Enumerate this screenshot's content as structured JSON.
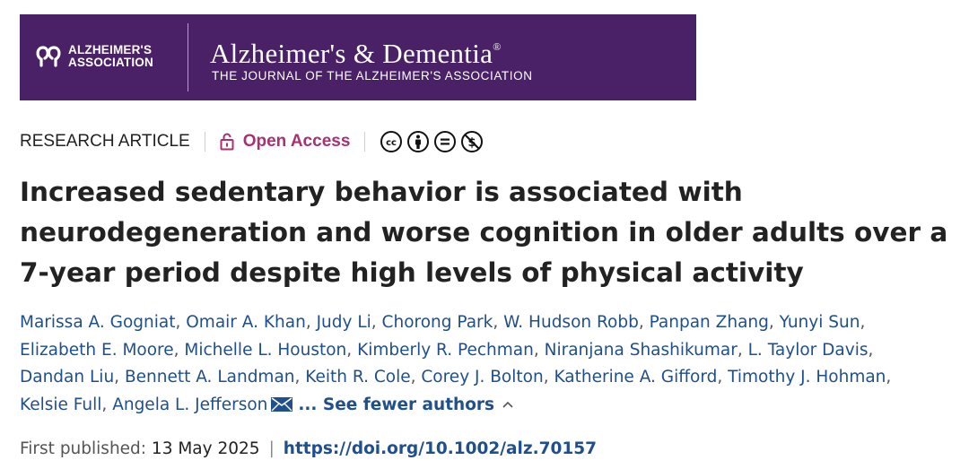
{
  "banner": {
    "association_line1": "ALZHEIMER'S",
    "association_line2": "ASSOCIATION",
    "journal_title": "Alzheimer's & Dementia",
    "trademark": "®",
    "journal_subtitle": "THE JOURNAL OF THE ALZHEIMER'S ASSOCIATION",
    "background_color": "#4a2066"
  },
  "meta": {
    "article_type": "RESEARCH ARTICLE",
    "open_access_label": "Open Access",
    "open_access_color": "#a83171",
    "license_icons": [
      "cc-icon",
      "attribution-icon",
      "no-derivatives-icon",
      "non-commercial-icon"
    ]
  },
  "article": {
    "title_lines": [
      "Increased sedentary behavior is associated with",
      "neurodegeneration and worse cognition in older adults over a",
      "7-year period despite high levels of physical activity"
    ]
  },
  "authors": {
    "list": [
      "Marissa A. Gogniat",
      "Omair A. Khan",
      "Judy Li",
      "Chorong Park",
      "W. Hudson Robb",
      "Panpan Zhang",
      "Yunyi Sun",
      "Elizabeth E. Moore",
      "Michelle L. Houston",
      "Kimberly R. Pechman",
      "Niranjana Shashikumar",
      "L. Taylor Davis",
      "Dandan Liu",
      "Bennett A. Landman",
      "Keith R. Cole",
      "Corey J. Bolton",
      "Katherine A. Gifford",
      "Timothy J. Hohman",
      "Kelsie Full",
      "Angela L. Jefferson"
    ],
    "toggle_label": "... See fewer authors",
    "link_color": "#1f4f8c"
  },
  "publication": {
    "first_published_label": "First published:",
    "date": "13 May 2025",
    "separator": "|",
    "doi": "https://doi.org/10.1002/alz.70157"
  }
}
